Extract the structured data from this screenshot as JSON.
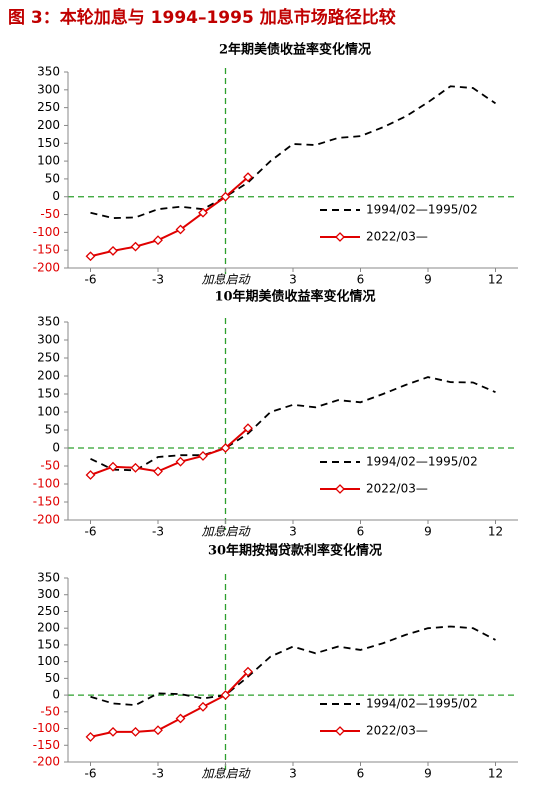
{
  "title": "图 3：本轮加息与 1994–1995 加息市场路径比较",
  "chart_data": [
    {
      "type": "line",
      "title": "2年期美债收益率变化情况",
      "x": [
        -6,
        -5,
        -4,
        -3,
        -2,
        -1,
        0,
        1,
        2,
        3,
        4,
        5,
        6,
        7,
        8,
        9,
        10,
        11,
        12
      ],
      "xlim": [
        -7,
        13
      ],
      "xticks": [
        -6,
        -3,
        {
          "value": 0,
          "label": "加息启动"
        },
        3,
        6,
        9,
        12
      ],
      "ylim": [
        -200,
        350
      ],
      "yticks": [
        -200,
        -150,
        -100,
        -50,
        0,
        50,
        100,
        150,
        200,
        250,
        300,
        350
      ],
      "negative_tick_color": "#e00000",
      "reference_color": "#2ca02c",
      "series": [
        {
          "name": "1994/02—1995/02",
          "color": "#000000",
          "dash": true,
          "values": [
            -45,
            -60,
            -58,
            -35,
            -28,
            -35,
            0,
            40,
            100,
            148,
            145,
            165,
            170,
            195,
            225,
            265,
            310,
            305,
            262
          ]
        },
        {
          "name": "2022/03—",
          "color": "#e00000",
          "marker": "diamond",
          "values": [
            -167,
            -152,
            -140,
            -122,
            -92,
            -45,
            0,
            55,
            null,
            null,
            null,
            null,
            null,
            null,
            null,
            null,
            null,
            null,
            null
          ]
        }
      ]
    },
    {
      "type": "line",
      "title": "10年期美债收益率变化情况",
      "x": [
        -6,
        -5,
        -4,
        -3,
        -2,
        -1,
        0,
        1,
        2,
        3,
        4,
        5,
        6,
        7,
        8,
        9,
        10,
        11,
        12
      ],
      "xlim": [
        -7,
        13
      ],
      "xticks": [
        -6,
        -3,
        {
          "value": 0,
          "label": "加息启动"
        },
        3,
        6,
        9,
        12
      ],
      "ylim": [
        -200,
        350
      ],
      "yticks": [
        -200,
        -150,
        -100,
        -50,
        0,
        50,
        100,
        150,
        200,
        250,
        300,
        350
      ],
      "negative_tick_color": "#e00000",
      "reference_color": "#2ca02c",
      "series": [
        {
          "name": "1994/02—1995/02",
          "color": "#000000",
          "dash": true,
          "values": [
            -30,
            -60,
            -62,
            -25,
            -20,
            -20,
            0,
            40,
            100,
            120,
            113,
            133,
            127,
            150,
            175,
            197,
            183,
            182,
            155
          ]
        },
        {
          "name": "2022/03—",
          "color": "#e00000",
          "marker": "diamond",
          "values": [
            -75,
            -52,
            -55,
            -65,
            -38,
            -22,
            0,
            55,
            null,
            null,
            null,
            null,
            null,
            null,
            null,
            null,
            null,
            null,
            null
          ]
        }
      ]
    },
    {
      "type": "line",
      "title": "30年期按揭贷款利率变化情况",
      "x": [
        -6,
        -5,
        -4,
        -3,
        -2,
        -1,
        0,
        1,
        2,
        3,
        4,
        5,
        6,
        7,
        8,
        9,
        10,
        11,
        12
      ],
      "xlim": [
        -7,
        13
      ],
      "xticks": [
        -6,
        -3,
        {
          "value": 0,
          "label": "加息启动"
        },
        3,
        6,
        9,
        12
      ],
      "ylim": [
        -200,
        350
      ],
      "yticks": [
        -200,
        -150,
        -100,
        -50,
        0,
        50,
        100,
        150,
        200,
        250,
        300,
        350
      ],
      "negative_tick_color": "#e00000",
      "reference_color": "#2ca02c",
      "series": [
        {
          "name": "1994/02—1995/02",
          "color": "#000000",
          "dash": true,
          "values": [
            -5,
            -25,
            -30,
            5,
            3,
            -10,
            0,
            55,
            115,
            145,
            125,
            145,
            135,
            155,
            180,
            200,
            205,
            200,
            165
          ]
        },
        {
          "name": "2022/03—",
          "color": "#e00000",
          "marker": "diamond",
          "values": [
            -125,
            -110,
            -110,
            -105,
            -70,
            -35,
            0,
            70,
            null,
            null,
            null,
            null,
            null,
            null,
            null,
            null,
            null,
            null,
            null
          ]
        }
      ]
    }
  ]
}
